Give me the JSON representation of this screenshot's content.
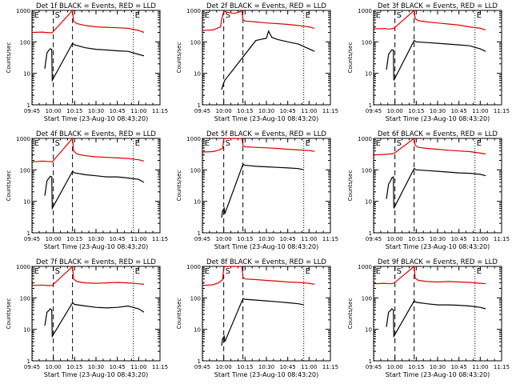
{
  "colors": {
    "events": "#000000",
    "lld": "#e00000",
    "axis": "#000000",
    "background": "#ffffff"
  },
  "common": {
    "ylabel": "Counts/sec",
    "xlabel": "Start Time (23-Aug-10 08:43:20)",
    "x_ticks": [
      "09:45",
      "10:00",
      "10:15",
      "10:30",
      "10:45",
      "11:00",
      "11:15"
    ],
    "y_ticks": [
      "1",
      "10",
      "100",
      "1000"
    ],
    "marker_labels": {
      "start": "E",
      "saa": "S",
      "end": "E"
    }
  },
  "chart_data": [
    {
      "type": "line",
      "title": "Det 1f BLACK = Events, RED = LLD",
      "yscale": "log",
      "ylim": [
        1,
        1000
      ],
      "xlim_minutes": [
        -20,
        100
      ],
      "markers": [
        {
          "x": -19.5,
          "label": "E",
          "style": "dotted"
        },
        {
          "x": 0,
          "label": "S",
          "style": "dashed"
        },
        {
          "x": 18,
          "label": "",
          "style": "dashed"
        },
        {
          "x": 75,
          "label": "E",
          "style": "dotted"
        }
      ],
      "series": [
        {
          "name": "Events",
          "x": [
            -8,
            -6,
            -4,
            -3,
            -1.5,
            -1,
            18,
            20,
            30,
            40,
            50,
            60,
            70,
            80,
            85
          ],
          "values": [
            14,
            45,
            55,
            60,
            58,
            6,
            90,
            80,
            65,
            58,
            55,
            52,
            50,
            40,
            36
          ]
        },
        {
          "name": "LLD",
          "x": [
            -19.5,
            -10,
            -5,
            -1,
            18,
            19,
            22,
            30,
            40,
            50,
            60,
            70,
            80,
            85
          ],
          "values": [
            200,
            205,
            195,
            195,
            1000,
            450,
            380,
            330,
            300,
            290,
            280,
            270,
            230,
            200
          ]
        }
      ]
    },
    {
      "type": "line",
      "title": "Det 2f BLACK = Events, RED = LLD",
      "yscale": "log",
      "ylim": [
        1,
        1000
      ],
      "xlim_minutes": [
        -20,
        100
      ],
      "markers": [
        {
          "x": -19.5,
          "label": "E",
          "style": "dotted"
        },
        {
          "x": 0,
          "label": "S",
          "style": "dashed"
        },
        {
          "x": 18,
          "label": "",
          "style": "dashed"
        },
        {
          "x": 75,
          "label": "E",
          "style": "dotted"
        }
      ],
      "series": [
        {
          "name": "Events",
          "x": [
            -2,
            -1,
            0,
            1,
            30,
            35,
            40,
            42,
            45,
            50,
            60,
            70,
            80,
            85
          ],
          "values": [
            3,
            4,
            5,
            6,
            110,
            120,
            130,
            220,
            140,
            120,
            100,
            85,
            60,
            50
          ]
        },
        {
          "name": "LLD",
          "x": [
            -19.5,
            -10,
            -3,
            -2,
            0,
            2,
            5,
            10,
            15,
            17,
            18,
            20,
            30,
            40,
            50,
            60,
            70,
            80,
            85
          ],
          "values": [
            230,
            240,
            300,
            500,
            950,
            900,
            850,
            800,
            900,
            1000,
            500,
            460,
            430,
            400,
            380,
            360,
            330,
            300,
            270
          ]
        }
      ]
    },
    {
      "type": "line",
      "title": "Det 3f BLACK = Events, RED = LLD",
      "yscale": "log",
      "ylim": [
        1,
        1000
      ],
      "xlim_minutes": [
        -20,
        100
      ],
      "markers": [
        {
          "x": -19.5,
          "label": "E",
          "style": "dotted"
        },
        {
          "x": 0,
          "label": "S",
          "style": "dashed"
        },
        {
          "x": 18,
          "label": "",
          "style": "dashed"
        },
        {
          "x": 75,
          "label": "E",
          "style": "dotted"
        }
      ],
      "series": [
        {
          "name": "Events",
          "x": [
            -8,
            -6,
            -4,
            -3,
            -1.5,
            -1,
            18,
            20,
            30,
            40,
            50,
            60,
            70,
            80,
            85
          ],
          "values": [
            13,
            40,
            50,
            55,
            55,
            6,
            110,
            100,
            95,
            90,
            85,
            80,
            75,
            60,
            50
          ]
        },
        {
          "name": "LLD",
          "x": [
            -19.5,
            -10,
            -5,
            -1,
            18,
            19,
            22,
            30,
            40,
            50,
            60,
            70,
            80,
            85
          ],
          "values": [
            260,
            265,
            255,
            270,
            1000,
            550,
            470,
            430,
            400,
            370,
            340,
            300,
            270,
            240
          ]
        }
      ]
    },
    {
      "type": "line",
      "title": "Det 4f BLACK = Events, RED = LLD",
      "yscale": "log",
      "ylim": [
        1,
        1000
      ],
      "xlim_minutes": [
        -20,
        100
      ],
      "markers": [
        {
          "x": -19.5,
          "label": "E",
          "style": "dotted"
        },
        {
          "x": 0,
          "label": "S",
          "style": "dashed"
        },
        {
          "x": 18,
          "label": "",
          "style": "dashed"
        },
        {
          "x": 75,
          "label": "E",
          "style": "dotted"
        }
      ],
      "series": [
        {
          "name": "Events",
          "x": [
            -8,
            -6,
            -4,
            -3,
            -1.5,
            -1,
            18,
            20,
            30,
            40,
            50,
            60,
            70,
            80,
            85
          ],
          "values": [
            15,
            45,
            55,
            62,
            60,
            6,
            90,
            80,
            70,
            65,
            60,
            60,
            55,
            50,
            40
          ]
        },
        {
          "name": "LLD",
          "x": [
            -19.5,
            -10,
            -5,
            -1,
            18,
            19,
            22,
            30,
            40,
            50,
            60,
            70,
            80,
            85
          ],
          "values": [
            180,
            190,
            185,
            180,
            1000,
            400,
            320,
            280,
            260,
            250,
            240,
            230,
            210,
            190
          ]
        }
      ]
    },
    {
      "type": "line",
      "title": "Det 5f BLACK = Events, RED = LLD",
      "yscale": "log",
      "ylim": [
        1,
        1000
      ],
      "xlim_minutes": [
        -20,
        100
      ],
      "markers": [
        {
          "x": -19.5,
          "label": "E",
          "style": "dotted"
        },
        {
          "x": 0,
          "label": "S",
          "style": "dashed"
        },
        {
          "x": 18,
          "label": "",
          "style": "dashed"
        },
        {
          "x": 75,
          "label": "E",
          "style": "dotted"
        }
      ],
      "series": [
        {
          "name": "Events",
          "x": [
            -2,
            -1.5,
            -1,
            0.5,
            1,
            18,
            20,
            30,
            40,
            50,
            60,
            70,
            75
          ],
          "values": [
            3,
            4,
            5,
            6,
            4,
            150,
            140,
            130,
            125,
            120,
            115,
            110,
            100
          ]
        },
        {
          "name": "LLD",
          "x": [
            -19.5,
            -10,
            -5,
            -1,
            0,
            2,
            5,
            10,
            15,
            17,
            18,
            20,
            30,
            40,
            50,
            60,
            70,
            80,
            85
          ],
          "values": [
            370,
            380,
            420,
            480,
            980,
            1000,
            990,
            1000,
            990,
            1000,
            600,
            540,
            520,
            500,
            480,
            450,
            430,
            410,
            390
          ]
        }
      ]
    },
    {
      "type": "line",
      "title": "Det 6f BLACK = Events, RED = LLD",
      "yscale": "log",
      "ylim": [
        1,
        1000
      ],
      "xlim_minutes": [
        -20,
        100
      ],
      "markers": [
        {
          "x": -19.5,
          "label": "E",
          "style": "dotted"
        },
        {
          "x": 0,
          "label": "S",
          "style": "dashed"
        },
        {
          "x": 18,
          "label": "",
          "style": "dashed"
        },
        {
          "x": 75,
          "label": "E",
          "style": "dotted"
        }
      ],
      "series": [
        {
          "name": "Events",
          "x": [
            -8,
            -6,
            -4,
            -3,
            -1.5,
            -1,
            18,
            20,
            30,
            40,
            50,
            60,
            70,
            80,
            85
          ],
          "values": [
            12,
            35,
            45,
            55,
            60,
            6,
            110,
            100,
            95,
            90,
            85,
            80,
            78,
            72,
            65
          ]
        },
        {
          "name": "LLD",
          "x": [
            -19.5,
            -10,
            -5,
            -1,
            18,
            19,
            22,
            30,
            40,
            50,
            60,
            70,
            80,
            85
          ],
          "values": [
            300,
            310,
            320,
            330,
            1000,
            600,
            520,
            480,
            450,
            420,
            400,
            380,
            340,
            320
          ]
        }
      ]
    },
    {
      "type": "line",
      "title": "Det 7f BLACK = Events, RED = LLD",
      "yscale": "log",
      "ylim": [
        1,
        1000
      ],
      "xlim_minutes": [
        -20,
        100
      ],
      "markers": [
        {
          "x": -19.5,
          "label": "E",
          "style": "dotted"
        },
        {
          "x": 0,
          "label": "S",
          "style": "dashed"
        },
        {
          "x": 18,
          "label": "",
          "style": "dashed"
        },
        {
          "x": 75,
          "label": "E",
          "style": "dotted"
        }
      ],
      "series": [
        {
          "name": "Events",
          "x": [
            -8,
            -6,
            -4,
            -3,
            -1.5,
            -1,
            18,
            20,
            30,
            40,
            50,
            60,
            70,
            80,
            85
          ],
          "values": [
            13,
            35,
            40,
            45,
            42,
            6,
            70,
            62,
            55,
            50,
            48,
            50,
            55,
            45,
            35
          ]
        },
        {
          "name": "LLD",
          "x": [
            -19.5,
            -10,
            -5,
            -1,
            18,
            19,
            22,
            30,
            40,
            50,
            60,
            70,
            80,
            85
          ],
          "values": [
            250,
            255,
            245,
            250,
            1000,
            400,
            330,
            300,
            290,
            300,
            310,
            300,
            280,
            270
          ]
        }
      ]
    },
    {
      "type": "line",
      "title": "Det 8f BLACK = Events, RED = LLD",
      "yscale": "log",
      "ylim": [
        1,
        1000
      ],
      "xlim_minutes": [
        -20,
        100
      ],
      "markers": [
        {
          "x": -19.5,
          "label": "E",
          "style": "dotted"
        },
        {
          "x": 0,
          "label": "S",
          "style": "dashed"
        },
        {
          "x": 18,
          "label": "",
          "style": "dashed"
        },
        {
          "x": 75,
          "label": "E",
          "style": "dotted"
        }
      ],
      "series": [
        {
          "name": "Events",
          "x": [
            -2,
            -1.5,
            -1,
            0.5,
            1,
            18,
            20,
            30,
            40,
            50,
            60,
            70,
            75
          ],
          "values": [
            3,
            4,
            5,
            6,
            4,
            95,
            90,
            85,
            80,
            75,
            70,
            65,
            60
          ]
        },
        {
          "name": "LLD",
          "x": [
            -19.5,
            -10,
            -5,
            -1,
            0,
            2,
            5,
            10,
            15,
            17,
            18,
            20,
            30,
            40,
            50,
            60,
            70,
            80,
            85
          ],
          "values": [
            250,
            260,
            300,
            380,
            950,
            1000,
            990,
            1000,
            990,
            1000,
            450,
            400,
            380,
            360,
            340,
            320,
            310,
            290,
            270
          ]
        }
      ]
    },
    {
      "type": "line",
      "title": "Det 9f BLACK = Events, RED = LLD",
      "yscale": "log",
      "ylim": [
        1,
        1000
      ],
      "xlim_minutes": [
        -20,
        100
      ],
      "markers": [
        {
          "x": -19.5,
          "label": "E",
          "style": "dotted"
        },
        {
          "x": 0,
          "label": "S",
          "style": "dashed"
        },
        {
          "x": 18,
          "label": "",
          "style": "dashed"
        },
        {
          "x": 75,
          "label": "E",
          "style": "dotted"
        }
      ],
      "series": [
        {
          "name": "Events",
          "x": [
            -8,
            -6,
            -4,
            -3,
            -1.5,
            -1,
            18,
            20,
            30,
            40,
            50,
            60,
            70,
            80,
            85
          ],
          "values": [
            12,
            35,
            40,
            45,
            42,
            6,
            80,
            72,
            65,
            60,
            60,
            58,
            55,
            50,
            45
          ]
        },
        {
          "name": "LLD",
          "x": [
            -19.5,
            -10,
            -5,
            -1,
            18,
            19,
            22,
            30,
            40,
            50,
            60,
            70,
            80,
            85
          ],
          "values": [
            280,
            290,
            280,
            290,
            1000,
            420,
            360,
            330,
            320,
            330,
            320,
            310,
            290,
            280
          ]
        }
      ]
    }
  ]
}
